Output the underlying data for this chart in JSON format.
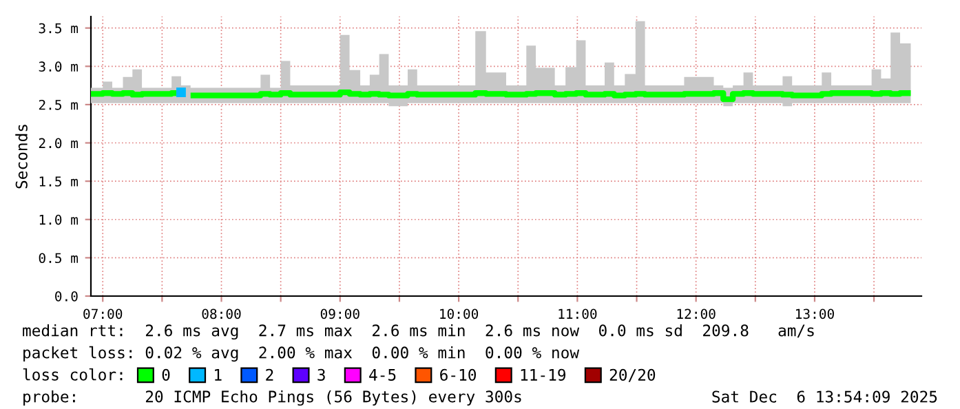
{
  "chart_data": {
    "type": "step",
    "ylabel": "Seconds",
    "x": [
      6.9,
      7.0,
      7.08,
      7.17,
      7.25,
      7.33,
      7.58,
      7.66,
      7.74,
      8.33,
      8.41,
      8.5,
      8.58,
      9.0,
      9.08,
      9.17,
      9.25,
      9.33,
      9.41,
      9.57,
      9.65,
      10.14,
      10.23,
      10.4,
      10.57,
      10.65,
      10.81,
      10.9,
      10.99,
      11.07,
      11.23,
      11.31,
      11.4,
      11.49,
      11.57,
      11.9,
      12.15,
      12.23,
      12.31,
      12.4,
      12.48,
      12.73,
      12.81,
      13.06,
      13.14,
      13.48,
      13.56,
      13.64,
      13.72,
      13.81
    ],
    "series": [
      {
        "name": "0",
        "color": "#00ff00",
        "values": [
          2.64,
          2.65,
          2.64,
          2.65,
          2.63,
          2.64,
          2.65,
          null,
          2.62,
          2.64,
          2.63,
          2.65,
          2.63,
          2.66,
          2.64,
          2.63,
          2.64,
          2.63,
          2.62,
          2.64,
          2.63,
          2.65,
          2.64,
          2.63,
          2.64,
          2.65,
          2.63,
          2.64,
          2.65,
          2.63,
          2.64,
          2.62,
          2.63,
          2.64,
          2.63,
          2.64,
          2.65,
          2.57,
          2.64,
          2.65,
          2.64,
          2.63,
          2.62,
          2.64,
          2.65,
          2.64,
          2.65,
          2.64,
          2.65,
          2.65
        ],
        "lower": [
          2.52,
          2.52,
          2.52,
          2.52,
          2.52,
          2.52,
          2.52,
          2.52,
          2.52,
          2.52,
          2.52,
          2.52,
          2.52,
          2.52,
          2.52,
          2.52,
          2.52,
          2.52,
          2.48,
          2.52,
          2.52,
          2.52,
          2.52,
          2.52,
          2.52,
          2.52,
          2.52,
          2.52,
          2.52,
          2.52,
          2.52,
          2.52,
          2.52,
          2.52,
          2.52,
          2.52,
          2.52,
          2.48,
          2.52,
          2.52,
          2.52,
          2.48,
          2.52,
          2.52,
          2.52,
          2.52,
          2.52,
          2.52,
          2.52,
          2.52
        ],
        "upper": [
          2.72,
          2.8,
          2.72,
          2.86,
          2.96,
          2.72,
          2.87,
          2.75,
          2.72,
          2.89,
          2.72,
          3.07,
          2.75,
          3.41,
          2.95,
          2.75,
          2.89,
          3.16,
          2.75,
          2.96,
          2.75,
          3.46,
          2.92,
          2.75,
          3.27,
          2.98,
          2.75,
          2.99,
          3.34,
          2.75,
          3.05,
          2.75,
          2.9,
          3.59,
          2.75,
          2.86,
          2.75,
          2.72,
          2.75,
          2.92,
          2.75,
          2.87,
          2.75,
          2.92,
          2.75,
          2.96,
          2.84,
          3.44,
          3.3,
          3.3
        ]
      },
      {
        "name": "1",
        "color": "#00b8ff",
        "type": "scatter",
        "values": [
          null,
          null,
          null,
          null,
          null,
          null,
          null,
          2.66,
          null,
          null,
          null,
          null,
          null,
          null,
          null,
          null,
          null,
          null,
          null,
          null,
          null,
          null,
          null,
          null,
          null,
          null,
          null,
          null,
          null,
          null,
          null,
          null,
          null,
          null,
          null,
          null,
          null,
          null,
          null,
          null,
          null,
          null,
          null,
          null,
          null,
          null,
          null,
          null,
          null,
          null
        ]
      },
      {
        "name": "2",
        "color": "#0059ff",
        "type": "scatter",
        "values": [
          null,
          null,
          null,
          null,
          null,
          null,
          null,
          null,
          null,
          null,
          null,
          null,
          null,
          null,
          null,
          null,
          null,
          null,
          null,
          null,
          null,
          null,
          null,
          null,
          null,
          null,
          null,
          null,
          null,
          null,
          null,
          null,
          null,
          null,
          null,
          null,
          null,
          null,
          null,
          null,
          null,
          null,
          null,
          null,
          null,
          null,
          null,
          null,
          null,
          null
        ]
      },
      {
        "name": "3",
        "color": "#5e00ff",
        "type": "scatter",
        "values": [
          null,
          null,
          null,
          null,
          null,
          null,
          null,
          null,
          null,
          null,
          null,
          null,
          null,
          null,
          null,
          null,
          null,
          null,
          null,
          null,
          null,
          null,
          null,
          null,
          null,
          null,
          null,
          null,
          null,
          null,
          null,
          null,
          null,
          null,
          null,
          null,
          null,
          null,
          null,
          null,
          null,
          null,
          null,
          null,
          null,
          null,
          null,
          null,
          null,
          null
        ]
      },
      {
        "name": "4-5",
        "color": "#ff00ff",
        "type": "scatter",
        "values": [
          null,
          null,
          null,
          null,
          null,
          null,
          null,
          null,
          null,
          null,
          null,
          null,
          null,
          null,
          null,
          null,
          null,
          null,
          null,
          null,
          null,
          null,
          null,
          null,
          null,
          null,
          null,
          null,
          null,
          null,
          null,
          null,
          null,
          null,
          null,
          null,
          null,
          null,
          null,
          null,
          null,
          null,
          null,
          null,
          null,
          null,
          null,
          null,
          null,
          null
        ]
      },
      {
        "name": "6-10",
        "color": "#ff5500",
        "type": "scatter",
        "values": [
          null,
          null,
          null,
          null,
          null,
          null,
          null,
          null,
          null,
          null,
          null,
          null,
          null,
          null,
          null,
          null,
          null,
          null,
          null,
          null,
          null,
          null,
          null,
          null,
          null,
          null,
          null,
          null,
          null,
          null,
          null,
          null,
          null,
          null,
          null,
          null,
          null,
          null,
          null,
          null,
          null,
          null,
          null,
          null,
          null,
          null,
          null,
          null,
          null,
          null
        ]
      },
      {
        "name": "11-19",
        "color": "#ff0000",
        "type": "scatter",
        "values": [
          null,
          null,
          null,
          null,
          null,
          null,
          null,
          null,
          null,
          null,
          null,
          null,
          null,
          null,
          null,
          null,
          null,
          null,
          null,
          null,
          null,
          null,
          null,
          null,
          null,
          null,
          null,
          null,
          null,
          null,
          null,
          null,
          null,
          null,
          null,
          null,
          null,
          null,
          null,
          null,
          null,
          null,
          null,
          null,
          null,
          null,
          null,
          null,
          null,
          null
        ]
      },
      {
        "name": "20/20",
        "color": "#a10000",
        "type": "scatter",
        "values": [
          null,
          null,
          null,
          null,
          null,
          null,
          null,
          null,
          null,
          null,
          null,
          null,
          null,
          null,
          null,
          null,
          null,
          null,
          null,
          null,
          null,
          null,
          null,
          null,
          null,
          null,
          null,
          null,
          null,
          null,
          null,
          null,
          null,
          null,
          null,
          null,
          null,
          null,
          null,
          null,
          null,
          null,
          null,
          null,
          null,
          null,
          null,
          null,
          null,
          null
        ]
      }
    ],
    "legend": "bottom",
    "legend_title": "loss color:",
    "grid": true,
    "xlim": [
      6.9,
      13.9
    ],
    "xticks": [
      {
        "value": 7,
        "label": "07:00"
      },
      {
        "value": 7.5,
        "label": null
      },
      {
        "value": 8,
        "label": "08:00"
      },
      {
        "value": 8.5,
        "label": null
      },
      {
        "value": 9,
        "label": "09:00"
      },
      {
        "value": 9.5,
        "label": null
      },
      {
        "value": 10,
        "label": "10:00"
      },
      {
        "value": 10.5,
        "label": null
      },
      {
        "value": 11,
        "label": "11:00"
      },
      {
        "value": 11.5,
        "label": null
      },
      {
        "value": 12,
        "label": "12:00"
      },
      {
        "value": 12.5,
        "label": null
      },
      {
        "value": 13,
        "label": "13:00"
      },
      {
        "value": 13.5,
        "label": null
      }
    ],
    "ylim": [
      0,
      3.65
    ],
    "yticks": [
      {
        "value": 0,
        "label": "0.0"
      },
      {
        "value": 0.5,
        "label": "0.5 m"
      },
      {
        "value": 1,
        "label": "1.0 m"
      },
      {
        "value": 1.5,
        "label": "1.5 m"
      },
      {
        "value": 2,
        "label": "2.0 m"
      },
      {
        "value": 2.5,
        "label": "2.5 m"
      },
      {
        "value": 3,
        "label": "3.0 m"
      },
      {
        "value": 3.5,
        "label": "3.5 m"
      }
    ],
    "annotations": [
      "median rtt:  2.6 ms avg  2.7 ms max  2.6 ms min  2.6 ms now  0.0 ms sd  209.8   am/s",
      "packet loss: 0.02 % avg  2.00 % max  0.00 % min  0.00 % now",
      "probe:       20 ICMP Echo Pings (56 Bytes) every 300s",
      "Sat Dec  6 13:54:09 2025"
    ]
  }
}
